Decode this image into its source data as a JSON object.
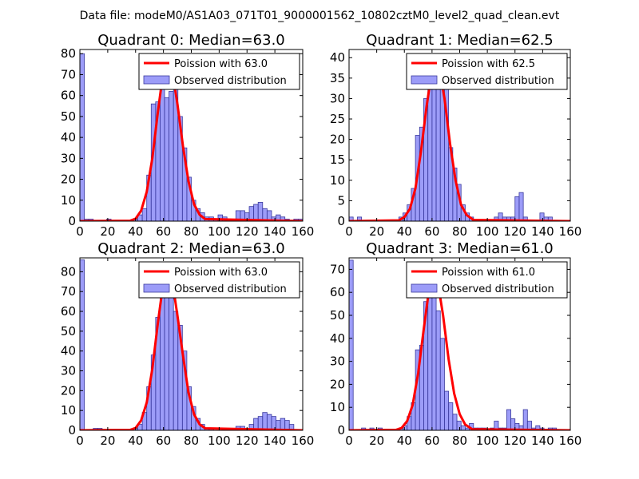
{
  "suptitle": "Data file: modeM0/AS1A03_071T01_9000001562_10802cztM0_level2_quad_clean.evt",
  "colors": {
    "bar_fill": "#7b7bf5",
    "bar_edge": "#3a3a9e",
    "poisson_line": "#ff0000",
    "axes": "#000000"
  },
  "chart_data": [
    {
      "type": "bar",
      "title": "Quadrant 0: Median=63.0",
      "median": 63.0,
      "xlim": [
        0,
        160
      ],
      "ylim": [
        0,
        82
      ],
      "xticks": [
        0,
        20,
        40,
        60,
        80,
        100,
        120,
        140,
        160
      ],
      "yticks": [
        0,
        10,
        20,
        30,
        40,
        50,
        60,
        70,
        80
      ],
      "bin_width": 3.2,
      "bins_x": [
        0,
        3.2,
        6.4,
        9.6,
        12.8,
        16,
        19.2,
        22.4,
        25.6,
        28.8,
        32,
        35.2,
        38.4,
        41.6,
        44.8,
        48,
        51.2,
        54.4,
        57.6,
        60.8,
        64,
        67.2,
        70.4,
        73.6,
        76.8,
        80,
        83.2,
        86.4,
        89.6,
        92.8,
        96,
        99.2,
        102.4,
        105.6,
        108.8,
        112,
        115.2,
        118.4,
        121.6,
        124.8,
        128,
        131.2,
        134.4,
        137.6,
        140.8,
        144,
        147.2,
        150.4,
        153.6,
        156.8
      ],
      "counts": [
        80,
        1,
        1,
        0,
        0,
        0,
        1,
        0,
        0,
        0,
        0,
        0,
        1,
        3,
        6,
        22,
        56,
        57,
        77,
        59,
        62,
        68,
        50,
        35,
        21,
        10,
        6,
        4,
        2,
        2,
        1,
        3,
        2,
        1,
        0,
        5,
        5,
        4,
        7,
        8,
        9,
        6,
        5,
        2,
        3,
        2,
        1,
        0,
        1,
        1
      ],
      "legend": [
        "Poission with 63.0",
        "Observed distribution"
      ],
      "legend_loc": "upper right",
      "poisson_x": [
        0,
        36,
        40,
        44,
        48,
        52,
        56,
        60,
        63,
        66,
        70,
        74,
        78,
        82,
        86,
        90,
        160
      ],
      "poisson_y": [
        0,
        0.2,
        1.2,
        5,
        14,
        30,
        52,
        72,
        77.5,
        73,
        56,
        36,
        19,
        8,
        3,
        1,
        0
      ]
    },
    {
      "type": "bar",
      "title": "Quadrant 1: Median=62.5",
      "median": 62.5,
      "xlim": [
        0,
        160
      ],
      "ylim": [
        0,
        42
      ],
      "xticks": [
        0,
        20,
        40,
        60,
        80,
        100,
        120,
        140,
        160
      ],
      "yticks": [
        0,
        5,
        10,
        15,
        20,
        25,
        30,
        35,
        40
      ],
      "bin_width": 3.0,
      "bins_x": [
        0,
        3,
        6,
        9,
        12,
        15,
        18,
        21,
        24,
        27,
        30,
        33,
        36,
        39,
        42,
        45,
        48,
        51,
        54,
        57,
        60,
        63,
        66,
        69,
        72,
        75,
        78,
        81,
        84,
        87,
        90,
        93,
        96,
        99,
        102,
        105,
        108,
        111,
        114,
        117,
        120,
        123,
        126,
        129,
        132,
        135,
        138,
        141,
        144,
        147,
        150
      ],
      "counts": [
        1,
        0,
        1,
        0,
        0,
        0,
        0,
        0,
        0,
        0,
        0,
        0,
        1,
        2,
        4,
        8,
        21,
        23,
        30,
        33,
        40,
        39,
        37,
        35,
        18,
        13,
        9,
        4,
        2,
        1,
        0,
        0,
        0,
        0,
        0,
        1,
        2,
        1,
        1,
        1,
        6,
        7,
        1,
        0,
        0,
        0,
        2,
        1,
        1,
        0,
        0
      ],
      "legend": [
        "Poission with 62.5",
        "Observed distribution"
      ],
      "legend_loc": "upper right",
      "poisson_x": [
        0,
        36,
        40,
        44,
        48,
        52,
        56,
        60,
        62.5,
        65,
        69,
        73,
        77,
        81,
        85,
        90,
        160
      ],
      "poisson_y": [
        0,
        0.2,
        1,
        3,
        8,
        17,
        28,
        37,
        40,
        38,
        30,
        19,
        10,
        4,
        1.5,
        0.3,
        0
      ]
    },
    {
      "type": "bar",
      "title": "Quadrant 2: Median=63.0",
      "median": 63.0,
      "xlim": [
        0,
        160
      ],
      "ylim": [
        0,
        87
      ],
      "xticks": [
        0,
        20,
        40,
        60,
        80,
        100,
        120,
        140,
        160
      ],
      "yticks": [
        0,
        10,
        20,
        30,
        40,
        50,
        60,
        70,
        80
      ],
      "bin_width": 3.2,
      "bins_x": [
        0,
        3.2,
        6.4,
        9.6,
        12.8,
        16,
        19.2,
        22.4,
        25.6,
        28.8,
        32,
        35.2,
        38.4,
        41.6,
        44.8,
        48,
        51.2,
        54.4,
        57.6,
        60.8,
        64,
        67.2,
        70.4,
        73.6,
        76.8,
        80,
        83.2,
        86.4,
        89.6,
        92.8,
        96,
        99.2,
        102.4,
        105.6,
        108.8,
        112,
        115.2,
        118.4,
        121.6,
        124.8,
        128,
        131.2,
        134.4,
        137.6,
        140.8,
        144,
        147.2,
        150.4,
        153.6,
        156.8
      ],
      "counts": [
        86,
        0,
        0,
        1,
        1,
        0,
        0,
        0,
        0,
        0,
        0,
        0,
        1,
        3,
        9,
        22,
        38,
        57,
        78,
        77,
        72,
        60,
        53,
        40,
        22,
        12,
        6,
        3,
        1,
        1,
        0,
        0,
        1,
        1,
        0,
        2,
        2,
        1,
        3,
        6,
        7,
        9,
        8,
        7,
        5,
        6,
        5,
        3,
        0,
        0
      ],
      "legend": [
        "Poission with 63.0",
        "Observed distribution"
      ],
      "legend_loc": "upper right",
      "poisson_x": [
        0,
        36,
        40,
        44,
        48,
        52,
        56,
        60,
        63,
        66,
        70,
        74,
        78,
        82,
        86,
        90,
        160
      ],
      "poisson_y": [
        0,
        0.2,
        1.2,
        5,
        14,
        31,
        54,
        75,
        81.5,
        77,
        58,
        38,
        19,
        8,
        3,
        1,
        0
      ]
    },
    {
      "type": "bar",
      "title": "Quadrant 3: Median=61.0",
      "median": 61.0,
      "xlim": [
        0,
        160
      ],
      "ylim": [
        0,
        75
      ],
      "xticks": [
        0,
        20,
        40,
        60,
        80,
        100,
        120,
        140,
        160
      ],
      "yticks": [
        0,
        10,
        20,
        30,
        40,
        50,
        60,
        70
      ],
      "bin_width": 3.0,
      "bins_x": [
        0,
        3,
        6,
        9,
        12,
        15,
        18,
        21,
        24,
        27,
        30,
        33,
        36,
        39,
        42,
        45,
        48,
        51,
        54,
        57,
        60,
        63,
        66,
        69,
        72,
        75,
        78,
        81,
        84,
        87,
        90,
        93,
        96,
        99,
        102,
        105,
        108,
        111,
        114,
        117,
        120,
        123,
        126,
        129,
        132,
        135,
        138,
        141,
        144,
        147,
        150
      ],
      "counts": [
        74,
        0,
        0,
        1,
        0,
        1,
        0,
        1,
        0,
        0,
        0,
        0,
        1,
        2,
        6,
        12,
        35,
        37,
        56,
        73,
        68,
        52,
        40,
        17,
        12,
        7,
        4,
        2,
        1,
        3,
        1,
        1,
        1,
        0,
        1,
        4,
        1,
        1,
        9,
        5,
        3,
        2,
        9,
        4,
        1,
        2,
        1,
        0,
        1,
        1,
        0
      ],
      "legend": [
        "Poission with 61.0",
        "Observed distribution"
      ],
      "legend_loc": "upper right",
      "poisson_x": [
        0,
        34,
        38,
        42,
        46,
        50,
        54,
        58,
        61,
        64,
        68,
        72,
        76,
        80,
        84,
        89,
        160
      ],
      "poisson_y": [
        0,
        0.2,
        1,
        4,
        11,
        25,
        44,
        62,
        69,
        65,
        50,
        31,
        16,
        7,
        2.5,
        0.5,
        0
      ]
    }
  ]
}
